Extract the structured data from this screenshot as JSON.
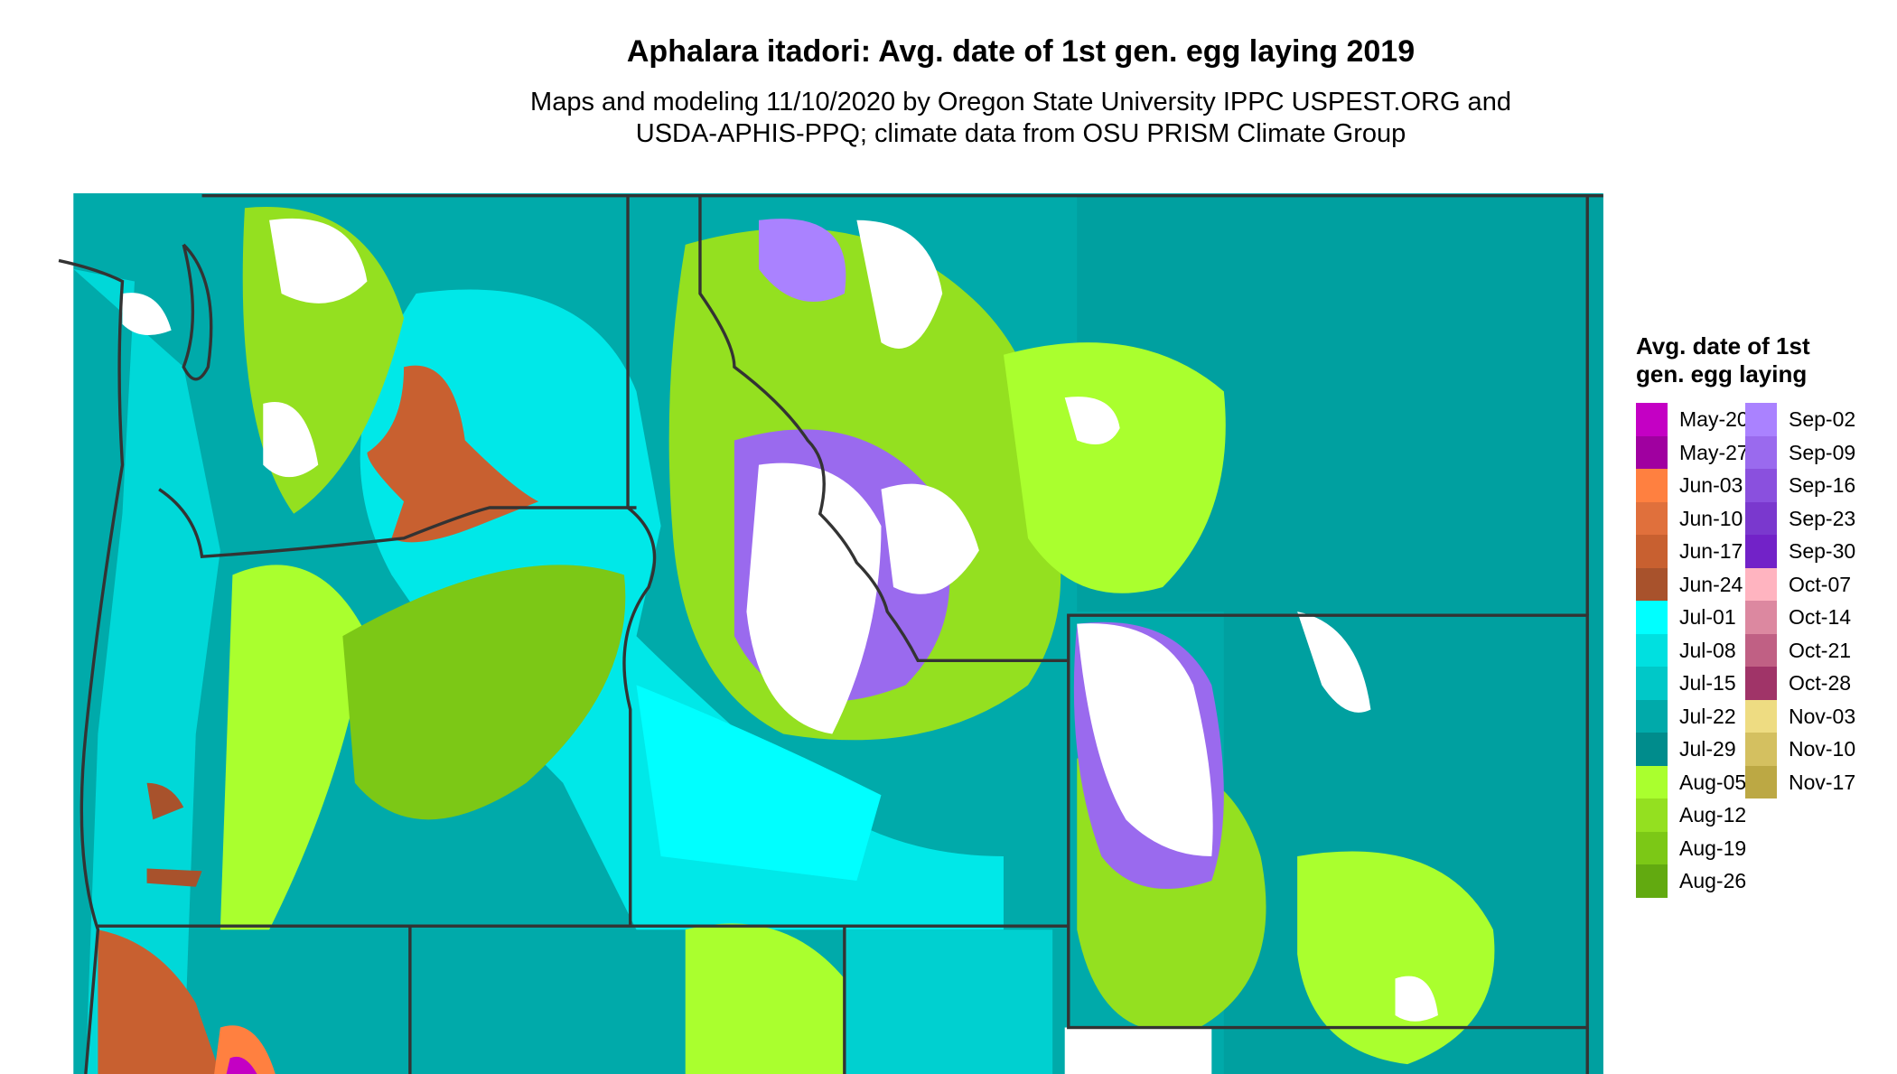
{
  "chart_data": {
    "type": "heatmap",
    "title": "Aphalara itadori: Avg. date of 1st gen. egg laying 2019",
    "subtitle": "Maps and modeling 11/10/2020 by Oregon State University IPPC USPEST.ORG and USDA-APHIS-PPQ; climate data from OSU PRISM Climate Group",
    "legend_title": "Avg. date of 1st gen. egg laying",
    "legend_placement": "right",
    "legend": [
      {
        "label": "May-20",
        "color": "#C400C4"
      },
      {
        "label": "May-27",
        "color": "#A000A0"
      },
      {
        "label": "Jun-03",
        "color": "#FF8040"
      },
      {
        "label": "Jun-10",
        "color": "#E0703C"
      },
      {
        "label": "Jun-17",
        "color": "#C86030"
      },
      {
        "label": "Jun-24",
        "color": "#A8522C"
      },
      {
        "label": "Jul-01",
        "color": "#00FFFF"
      },
      {
        "label": "Jul-08",
        "color": "#00E0E0"
      },
      {
        "label": "Jul-15",
        "color": "#00C8C8"
      },
      {
        "label": "Jul-22",
        "color": "#00AAAA"
      },
      {
        "label": "Jul-29",
        "color": "#008C8C"
      },
      {
        "label": "Aug-05",
        "color": "#AAFF2E"
      },
      {
        "label": "Aug-12",
        "color": "#94E020"
      },
      {
        "label": "Aug-19",
        "color": "#7CC816"
      },
      {
        "label": "Aug-26",
        "color": "#62AA10"
      },
      {
        "label": "Sep-02",
        "color": "#AA82FF"
      },
      {
        "label": "Sep-09",
        "color": "#9A6AEE"
      },
      {
        "label": "Sep-16",
        "color": "#8A50DE"
      },
      {
        "label": "Sep-23",
        "color": "#7A38CE"
      },
      {
        "label": "Sep-30",
        "color": "#7222C8"
      },
      {
        "label": "Oct-07",
        "color": "#FFB4C0"
      },
      {
        "label": "Oct-14",
        "color": "#DC88A0"
      },
      {
        "label": "Oct-21",
        "color": "#C06084"
      },
      {
        "label": "Oct-28",
        "color": "#A03468"
      },
      {
        "label": "Nov-03",
        "color": "#EEDC82"
      },
      {
        "label": "Nov-10",
        "color": "#D4C060"
      },
      {
        "label": "Nov-17",
        "color": "#BCA844"
      }
    ],
    "no_data_color": "#FFFFFF"
  }
}
